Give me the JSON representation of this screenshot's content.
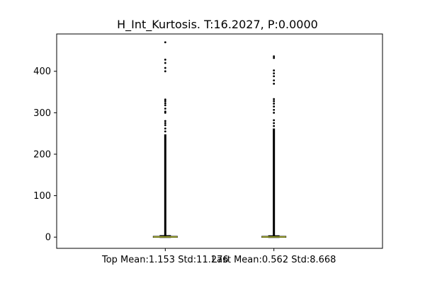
{
  "chart_data": {
    "type": "box",
    "title": "H_Int_Kurtosis. T:16.2027, P:0.0000",
    "xlabel": "",
    "ylabel": "",
    "categories": [
      "Top Mean:1.153 Std:11.276",
      "Last Mean:0.562 Std:8.668"
    ],
    "ylim": [
      -27,
      490
    ],
    "yticks": [
      0,
      100,
      200,
      300,
      400
    ],
    "grid": false,
    "legend": "none",
    "boxes": [
      {
        "q1": 0.0,
        "median": 0.5,
        "q3": 2.0,
        "whisker_low": -1.0,
        "whisker_high": 4.0,
        "outlier_dense_range": [
          3,
          248
        ],
        "outliers_sparse": [
          255,
          262,
          270,
          275,
          280,
          300,
          303,
          310,
          318,
          323,
          328,
          332,
          400,
          408,
          420,
          428,
          470
        ]
      },
      {
        "q1": 0.0,
        "median": 0.5,
        "q3": 2.0,
        "whisker_low": -1.0,
        "whisker_high": 3.5,
        "outlier_dense_range": [
          3,
          262
        ],
        "outliers_sparse": [
          268,
          275,
          282,
          300,
          307,
          315,
          322,
          328,
          333,
          370,
          378,
          388,
          395,
          402,
          432,
          436
        ]
      }
    ],
    "colors": {
      "box": "#000000",
      "median": "#b5bd2f",
      "outlier": "#000000"
    }
  }
}
